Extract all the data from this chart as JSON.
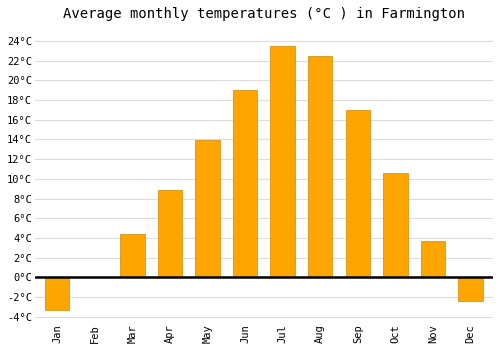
{
  "title": "Average monthly temperatures (°C ) in Farmington",
  "months": [
    "Jan",
    "Feb",
    "Mar",
    "Apr",
    "May",
    "Jun",
    "Jul",
    "Aug",
    "Sep",
    "Oct",
    "Nov",
    "Dec"
  ],
  "temperatures": [
    -3.3,
    0,
    4.4,
    8.9,
    13.9,
    19.0,
    23.5,
    22.5,
    17.0,
    10.6,
    3.7,
    -2.4
  ],
  "bar_color": "#FFA500",
  "bar_edge_color": "#CC8800",
  "ylim": [
    -4.5,
    25.5
  ],
  "yticks": [
    -4,
    -2,
    0,
    2,
    4,
    6,
    8,
    10,
    12,
    14,
    16,
    18,
    20,
    22,
    24
  ],
  "ytick_labels": [
    "-4°C",
    "-2°C",
    "0°C",
    "2°C",
    "4°C",
    "6°C",
    "8°C",
    "10°C",
    "12°C",
    "14°C",
    "16°C",
    "18°C",
    "20°C",
    "22°C",
    "24°C"
  ],
  "plot_background_color": "#ffffff",
  "fig_background_color": "#ffffff",
  "grid_color": "#dddddd",
  "zero_line_color": "#000000",
  "title_fontsize": 10,
  "tick_fontsize": 7.5,
  "bar_width": 0.65
}
